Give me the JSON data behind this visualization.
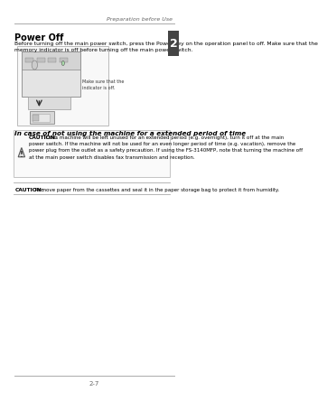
{
  "header_text": "Preparation before Use",
  "chapter_num": "2",
  "title": "Power Off",
  "intro_line1": "Before turning off the main power switch, press the ",
  "intro_bold1": "Power",
  "intro_line1b": " key on the operation panel to off. Make sure that the",
  "intro_line2a": "",
  "intro_bold2": "memory",
  "intro_line2b": " indicator is off before turning off the main power switch.",
  "image_caption": "Make sure that the\nindicator is off.",
  "section_heading": "In case of not using the machine for a extended period of time",
  "caution1_label": "CAUTION:",
  "caution1_line1": " If this machine will be left unused for an extended period (e.g. overnight), turn it off at the main",
  "caution1_line2": "power switch. If the machine will not be used for an even longer period of time (e.g. vacation), remove the",
  "caution1_line3": "power plug from the outlet as a safety precaution. If using the FS-3140MFP, note that turning the machine off",
  "caution1_line4": "at the main power switch disables fax transmission and reception.",
  "caution2_label": "CAUTION:",
  "caution2_text": " Remove paper from the cassettes and seal it in the paper storage bag to protect it from humidity.",
  "footer_text": "2-7",
  "bg_color": "#ffffff",
  "text_color": "#000000",
  "header_color": "#666666",
  "line_color": "#aaaaaa",
  "chapter_bg": "#444444",
  "chapter_text_color": "#ffffff"
}
